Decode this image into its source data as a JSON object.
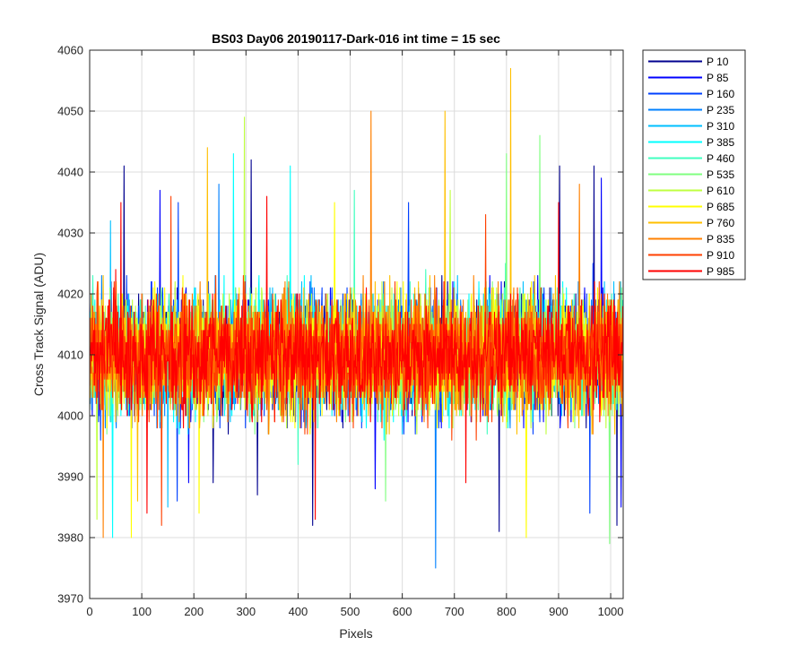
{
  "chart_data": {
    "type": "line",
    "title": "BS03 Day06 20190117-Dark-016 int time = 15 sec",
    "xlabel": "Pixels",
    "ylabel": "Cross Track Signal (ADU)",
    "xlim": [
      0,
      1024
    ],
    "ylim": [
      3970,
      4060
    ],
    "xticks": [
      0,
      100,
      200,
      300,
      400,
      500,
      600,
      700,
      800,
      900,
      1000
    ],
    "yticks": [
      3970,
      3980,
      3990,
      4000,
      4010,
      4020,
      4030,
      4040,
      4050,
      4060
    ],
    "grid": true,
    "legend_position": "outside-top-right",
    "noise_profile": {
      "mean": 4010,
      "typical_range": [
        3997,
        4023
      ]
    },
    "series": [
      {
        "name": "P 10",
        "color": "#00008f",
        "peaks": [
          [
            66,
            4041
          ],
          [
            310,
            4042
          ],
          [
            902,
            4041
          ],
          [
            968,
            4041
          ]
        ],
        "dips": [
          [
            237,
            3989
          ],
          [
            322,
            3987
          ],
          [
            428,
            3982
          ],
          [
            786,
            3981
          ],
          [
            1012,
            3982
          ]
        ]
      },
      {
        "name": "P 85",
        "color": "#0000ff",
        "peaks": [
          [
            135,
            4037
          ],
          [
            982,
            4039
          ]
        ],
        "dips": [
          [
            190,
            3989
          ],
          [
            548,
            3988
          ],
          [
            1020,
            3985
          ]
        ]
      },
      {
        "name": "P 160",
        "color": "#0040ff",
        "peaks": [
          [
            170,
            4035
          ],
          [
            612,
            4035
          ]
        ],
        "dips": [
          [
            168,
            3986
          ],
          [
            960,
            3984
          ]
        ]
      },
      {
        "name": "P 235",
        "color": "#0080ff",
        "peaks": [
          [
            248,
            4038
          ]
        ],
        "dips": [
          [
            664,
            3975
          ]
        ]
      },
      {
        "name": "P 310",
        "color": "#00bfff",
        "peaks": [
          [
            40,
            4032
          ]
        ],
        "dips": [
          [
            150,
            3985
          ]
        ]
      },
      {
        "name": "P 385",
        "color": "#00ffff",
        "peaks": [
          [
            276,
            4043
          ],
          [
            385,
            4041
          ]
        ],
        "dips": [
          [
            44,
            3980
          ]
        ]
      },
      {
        "name": "P 460",
        "color": "#40ffbf",
        "peaks": [
          [
            508,
            4037
          ]
        ],
        "dips": [
          [
            400,
            3992
          ]
        ]
      },
      {
        "name": "P 535",
        "color": "#80ff80",
        "peaks": [
          [
            800,
            4043
          ],
          [
            864,
            4046
          ]
        ],
        "dips": [
          [
            998,
            3979
          ],
          [
            568,
            3986
          ]
        ]
      },
      {
        "name": "P 610",
        "color": "#bfff40",
        "peaks": [
          [
            297,
            4049
          ],
          [
            692,
            4037
          ]
        ],
        "dips": [
          [
            14,
            3983
          ]
        ]
      },
      {
        "name": "P 685",
        "color": "#ffff00",
        "peaks": [
          [
            470,
            4035
          ]
        ],
        "dips": [
          [
            80,
            3980
          ],
          [
            210,
            3984
          ],
          [
            838,
            3980
          ]
        ]
      },
      {
        "name": "P 760",
        "color": "#ffbf00",
        "peaks": [
          [
            226,
            4044
          ],
          [
            682,
            4050
          ],
          [
            808,
            4057
          ]
        ],
        "dips": [
          [
            92,
            3986
          ]
        ]
      },
      {
        "name": "P 835",
        "color": "#ff8000",
        "peaks": [
          [
            540,
            4050
          ],
          [
            940,
            4038
          ]
        ],
        "dips": [
          [
            26,
            3980
          ]
        ]
      },
      {
        "name": "P 910",
        "color": "#ff4000",
        "peaks": [
          [
            156,
            4036
          ],
          [
            760,
            4033
          ]
        ],
        "dips": [
          [
            138,
            3982
          ]
        ]
      },
      {
        "name": "P 985",
        "color": "#ff0000",
        "peaks": [
          [
            60,
            4035
          ],
          [
            340,
            4036
          ],
          [
            900,
            4035
          ]
        ],
        "dips": [
          [
            110,
            3984
          ],
          [
            433,
            3983
          ],
          [
            722,
            3989
          ]
        ]
      }
    ]
  }
}
